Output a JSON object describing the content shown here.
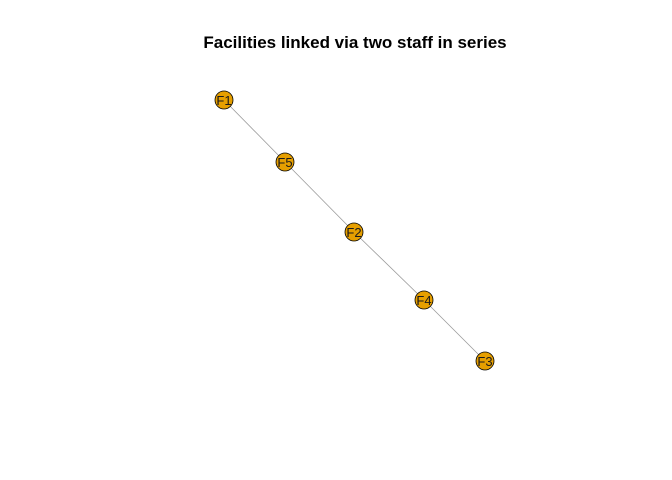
{
  "title": "Facilities linked via two staff in series",
  "colors": {
    "node_fill": "#E69F00",
    "node_stroke": "#000000",
    "edge": "#9a9a9a",
    "background": "#ffffff"
  },
  "graph": {
    "nodes": [
      {
        "id": "F1",
        "label": "F1"
      },
      {
        "id": "F5",
        "label": "F5"
      },
      {
        "id": "F2",
        "label": "F2"
      },
      {
        "id": "F4",
        "label": "F4"
      },
      {
        "id": "F3",
        "label": "F3"
      }
    ],
    "edges": [
      {
        "from": "F1",
        "to": "F5"
      },
      {
        "from": "F5",
        "to": "F2"
      },
      {
        "from": "F2",
        "to": "F4"
      },
      {
        "from": "F4",
        "to": "F3"
      }
    ]
  }
}
